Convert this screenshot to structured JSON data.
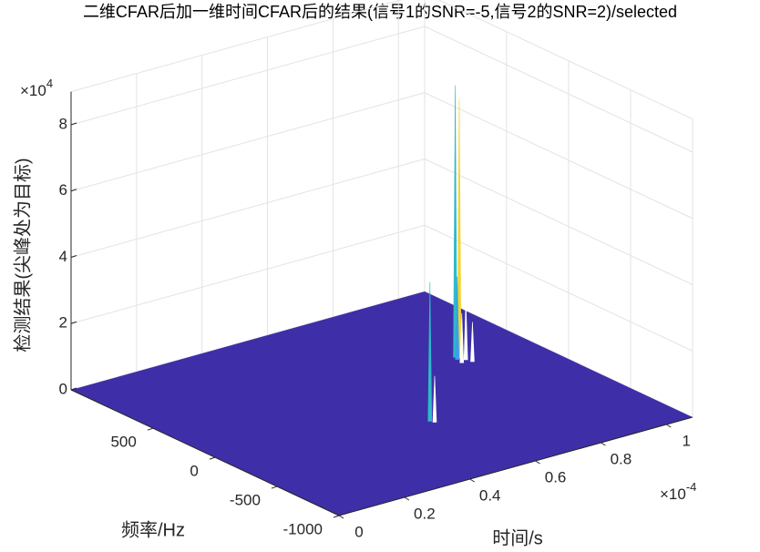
{
  "chart_data": {
    "type": "surface3d",
    "title": "二维CFAR后加一维时间CFAR后的结果(信号1的SNR=-5,信号2的SNR=2)/selected",
    "xlabel": "时间/s",
    "ylabel": "频率/Hz",
    "zlabel": "检测结果(尖峰处为目标)",
    "x_multiplier": {
      "base": "×10",
      "exponent": "-4"
    },
    "z_multiplier": {
      "base": "×10",
      "exponent": "4"
    },
    "xlim": [
      0,
      1.08
    ],
    "xticks": [
      0,
      0.2,
      0.4,
      0.6,
      0.8,
      1
    ],
    "ylim": [
      -1000,
      1160
    ],
    "yticks": [
      -1000,
      -500,
      0,
      500
    ],
    "zlim": [
      0,
      9
    ],
    "zticks": [
      0,
      2,
      4,
      6,
      8
    ],
    "grid": true,
    "surface_color": "#3e2fa8",
    "peaks": {
      "x": [
        0.87,
        0.875,
        0.865,
        0.88,
        0.86,
        0.885,
        0.56,
        0.565
      ],
      "y": [
        359,
        340,
        330,
        300,
        280,
        260,
        -255,
        -280
      ],
      "z": [
        8.2,
        7.8,
        2.5,
        1.8,
        1.5,
        1.2,
        4.2,
        1.4
      ],
      "colors": [
        "#2fb9c9",
        "#f5d327",
        "#3aa0e8",
        "#ffffff",
        "#ffffff",
        "#ffffff",
        "#2fb9c9",
        "#ffffff"
      ]
    }
  }
}
